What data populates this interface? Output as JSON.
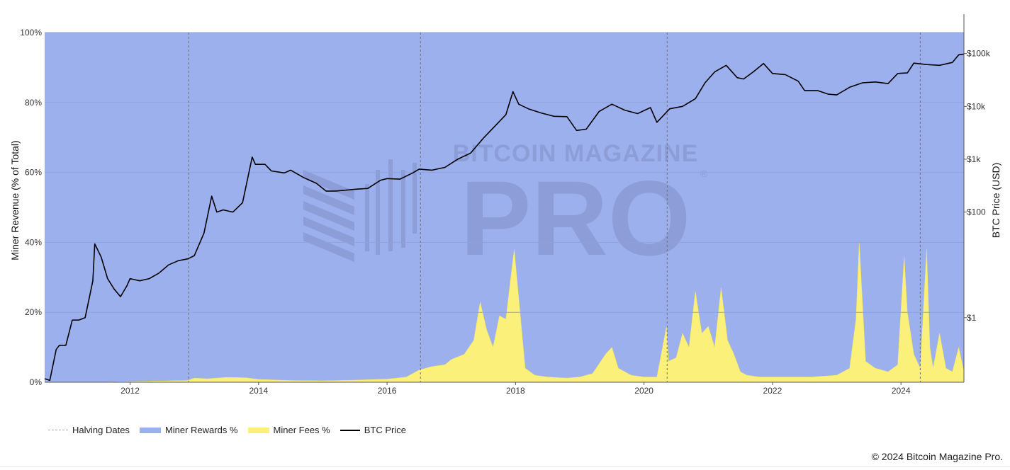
{
  "chart_data": {
    "type": "area",
    "watermark": [
      "BITCOIN MAGAZINE",
      "PRO",
      "®"
    ],
    "x_axis": {
      "range": [
        2010.67,
        2024.98
      ],
      "ticks": [
        "2012",
        "2014",
        "2016",
        "2018",
        "2020",
        "2022",
        "2024"
      ],
      "tick_values": [
        2012,
        2014,
        2016,
        2018,
        2020,
        2022,
        2024
      ]
    },
    "y_left": {
      "title": "Miner Revenue (% of Total)",
      "range": [
        0,
        100
      ],
      "ticks": [
        "0%",
        "20%",
        "40%",
        "60%",
        "80%",
        "100%"
      ],
      "tick_values": [
        0,
        20,
        40,
        60,
        80,
        100
      ]
    },
    "y_right": {
      "title": "BTC Price (USD)",
      "scale": "log",
      "range": [
        0.06,
        250000
      ],
      "ticks": [
        "$1",
        "$100",
        "$1k",
        "$10k",
        "$100k"
      ],
      "tick_values": [
        1,
        100,
        1000,
        10000,
        100000
      ]
    },
    "grid": true,
    "halving_dates": [
      2012.91,
      2016.52,
      2020.36,
      2024.3
    ],
    "series": [
      {
        "name": "Miner Rewards %",
        "color": "#9db0ee",
        "note_values": "complement of miner fees % (sums to 100%)"
      },
      {
        "name": "Miner Fees %",
        "color": "#fbf07a",
        "x": [
          2010.67,
          2011.5,
          2012.0,
          2012.3,
          2012.6,
          2012.9,
          2013.0,
          2013.2,
          2013.5,
          2013.8,
          2014.0,
          2014.5,
          2015.0,
          2015.5,
          2016.0,
          2016.3,
          2016.5,
          2016.7,
          2016.9,
          2017.0,
          2017.2,
          2017.35,
          2017.45,
          2017.55,
          2017.65,
          2017.75,
          2017.85,
          2017.92,
          2017.98,
          2018.05,
          2018.15,
          2018.3,
          2018.5,
          2018.8,
          2019.0,
          2019.2,
          2019.4,
          2019.5,
          2019.6,
          2019.8,
          2020.0,
          2020.2,
          2020.35,
          2020.38,
          2020.5,
          2020.6,
          2020.7,
          2020.8,
          2020.9,
          2021.0,
          2021.1,
          2021.2,
          2021.3,
          2021.4,
          2021.5,
          2021.6,
          2021.8,
          2022.0,
          2022.3,
          2022.6,
          2023.0,
          2023.2,
          2023.3,
          2023.35,
          2023.45,
          2023.6,
          2023.8,
          2023.95,
          2024.05,
          2024.1,
          2024.15,
          2024.2,
          2024.3,
          2024.4,
          2024.45,
          2024.5,
          2024.6,
          2024.7,
          2024.8,
          2024.9,
          2024.98
        ],
        "values": [
          0.0,
          0.0,
          0.2,
          0.3,
          0.4,
          0.5,
          1.2,
          1.0,
          1.4,
          1.3,
          0.8,
          0.5,
          0.4,
          0.6,
          0.9,
          1.5,
          3.5,
          4.5,
          5.0,
          6.5,
          8.0,
          12.0,
          23.0,
          15.0,
          10.0,
          19.0,
          18.0,
          29.0,
          38.0,
          24.0,
          4.0,
          2.0,
          1.5,
          1.2,
          1.5,
          2.5,
          8.0,
          10.0,
          4.0,
          2.0,
          1.5,
          1.5,
          16.0,
          6.0,
          7.0,
          14.0,
          10.0,
          26.0,
          14.0,
          16.0,
          10.0,
          27.0,
          12.0,
          8.0,
          3.0,
          2.0,
          1.5,
          1.5,
          1.5,
          1.5,
          2.0,
          4.0,
          18.0,
          40.0,
          6.0,
          4.0,
          3.0,
          5.0,
          36.0,
          20.0,
          14.0,
          8.0,
          4.0,
          38.0,
          10.0,
          4.0,
          14.0,
          4.0,
          3.0,
          10.0,
          3.0
        ]
      },
      {
        "name": "BTC Price",
        "color": "#000000",
        "axis": "right",
        "x": [
          2010.67,
          2010.75,
          2010.85,
          2010.9,
          2011.0,
          2011.1,
          2011.2,
          2011.3,
          2011.42,
          2011.45,
          2011.55,
          2011.65,
          2011.75,
          2011.85,
          2011.95,
          2012.0,
          2012.15,
          2012.3,
          2012.45,
          2012.6,
          2012.75,
          2012.9,
          2013.0,
          2013.15,
          2013.27,
          2013.35,
          2013.45,
          2013.6,
          2013.75,
          2013.9,
          2013.95,
          2014.1,
          2014.2,
          2014.4,
          2014.5,
          2014.7,
          2014.9,
          2015.05,
          2015.2,
          2015.5,
          2015.7,
          2015.9,
          2016.0,
          2016.2,
          2016.4,
          2016.5,
          2016.7,
          2016.9,
          2017.1,
          2017.3,
          2017.5,
          2017.7,
          2017.85,
          2017.96,
          2018.05,
          2018.2,
          2018.4,
          2018.6,
          2018.8,
          2018.95,
          2019.1,
          2019.3,
          2019.5,
          2019.7,
          2019.9,
          2020.1,
          2020.2,
          2020.4,
          2020.6,
          2020.8,
          2020.95,
          2021.1,
          2021.28,
          2021.45,
          2021.55,
          2021.7,
          2021.86,
          2022.0,
          2022.2,
          2022.4,
          2022.5,
          2022.7,
          2022.87,
          2023.0,
          2023.2,
          2023.4,
          2023.6,
          2023.8,
          2023.95,
          2024.1,
          2024.2,
          2024.4,
          2024.6,
          2024.8,
          2024.9,
          2024.98
        ],
        "values": [
          0.07,
          0.065,
          0.25,
          0.3,
          0.3,
          0.9,
          0.9,
          1.0,
          5.0,
          25.0,
          14.0,
          5.5,
          3.5,
          2.5,
          4.0,
          5.5,
          5.0,
          5.5,
          7.0,
          10.0,
          12.0,
          13.0,
          15.0,
          40.0,
          200.0,
          100.0,
          110.0,
          100.0,
          150.0,
          1100.0,
          800.0,
          800.0,
          600.0,
          550.0,
          620.0,
          450.0,
          350.0,
          250.0,
          250.0,
          270.0,
          280.0,
          400.0,
          430.0,
          420.0,
          550.0,
          650.0,
          620.0,
          700.0,
          1000.0,
          1300.0,
          2500.0,
          4500.0,
          7000.0,
          19000.0,
          11000.0,
          9000.0,
          7500.0,
          6500.0,
          6400.0,
          3500.0,
          3700.0,
          8000.0,
          11000.0,
          8500.0,
          7300.0,
          9500.0,
          5000.0,
          9000.0,
          10000.0,
          14000.0,
          28000.0,
          45000.0,
          60000.0,
          35000.0,
          33000.0,
          45000.0,
          65000.0,
          42000.0,
          40000.0,
          30000.0,
          20000.0,
          20000.0,
          17000.0,
          16500.0,
          23000.0,
          28000.0,
          29000.0,
          27000.0,
          42000.0,
          43000.0,
          66000.0,
          62000.0,
          60000.0,
          68000.0,
          95000.0,
          98000.0
        ]
      },
      {
        "name": "Halving Dates",
        "style": "dashed",
        "color": "#a5a5a5"
      }
    ],
    "legend": [
      "Halving Dates",
      "Miner Rewards %",
      "Miner Fees %",
      "BTC Price"
    ],
    "legend_position": "bottom-left"
  },
  "credit": "© 2024 Bitcoin Magazine Pro."
}
